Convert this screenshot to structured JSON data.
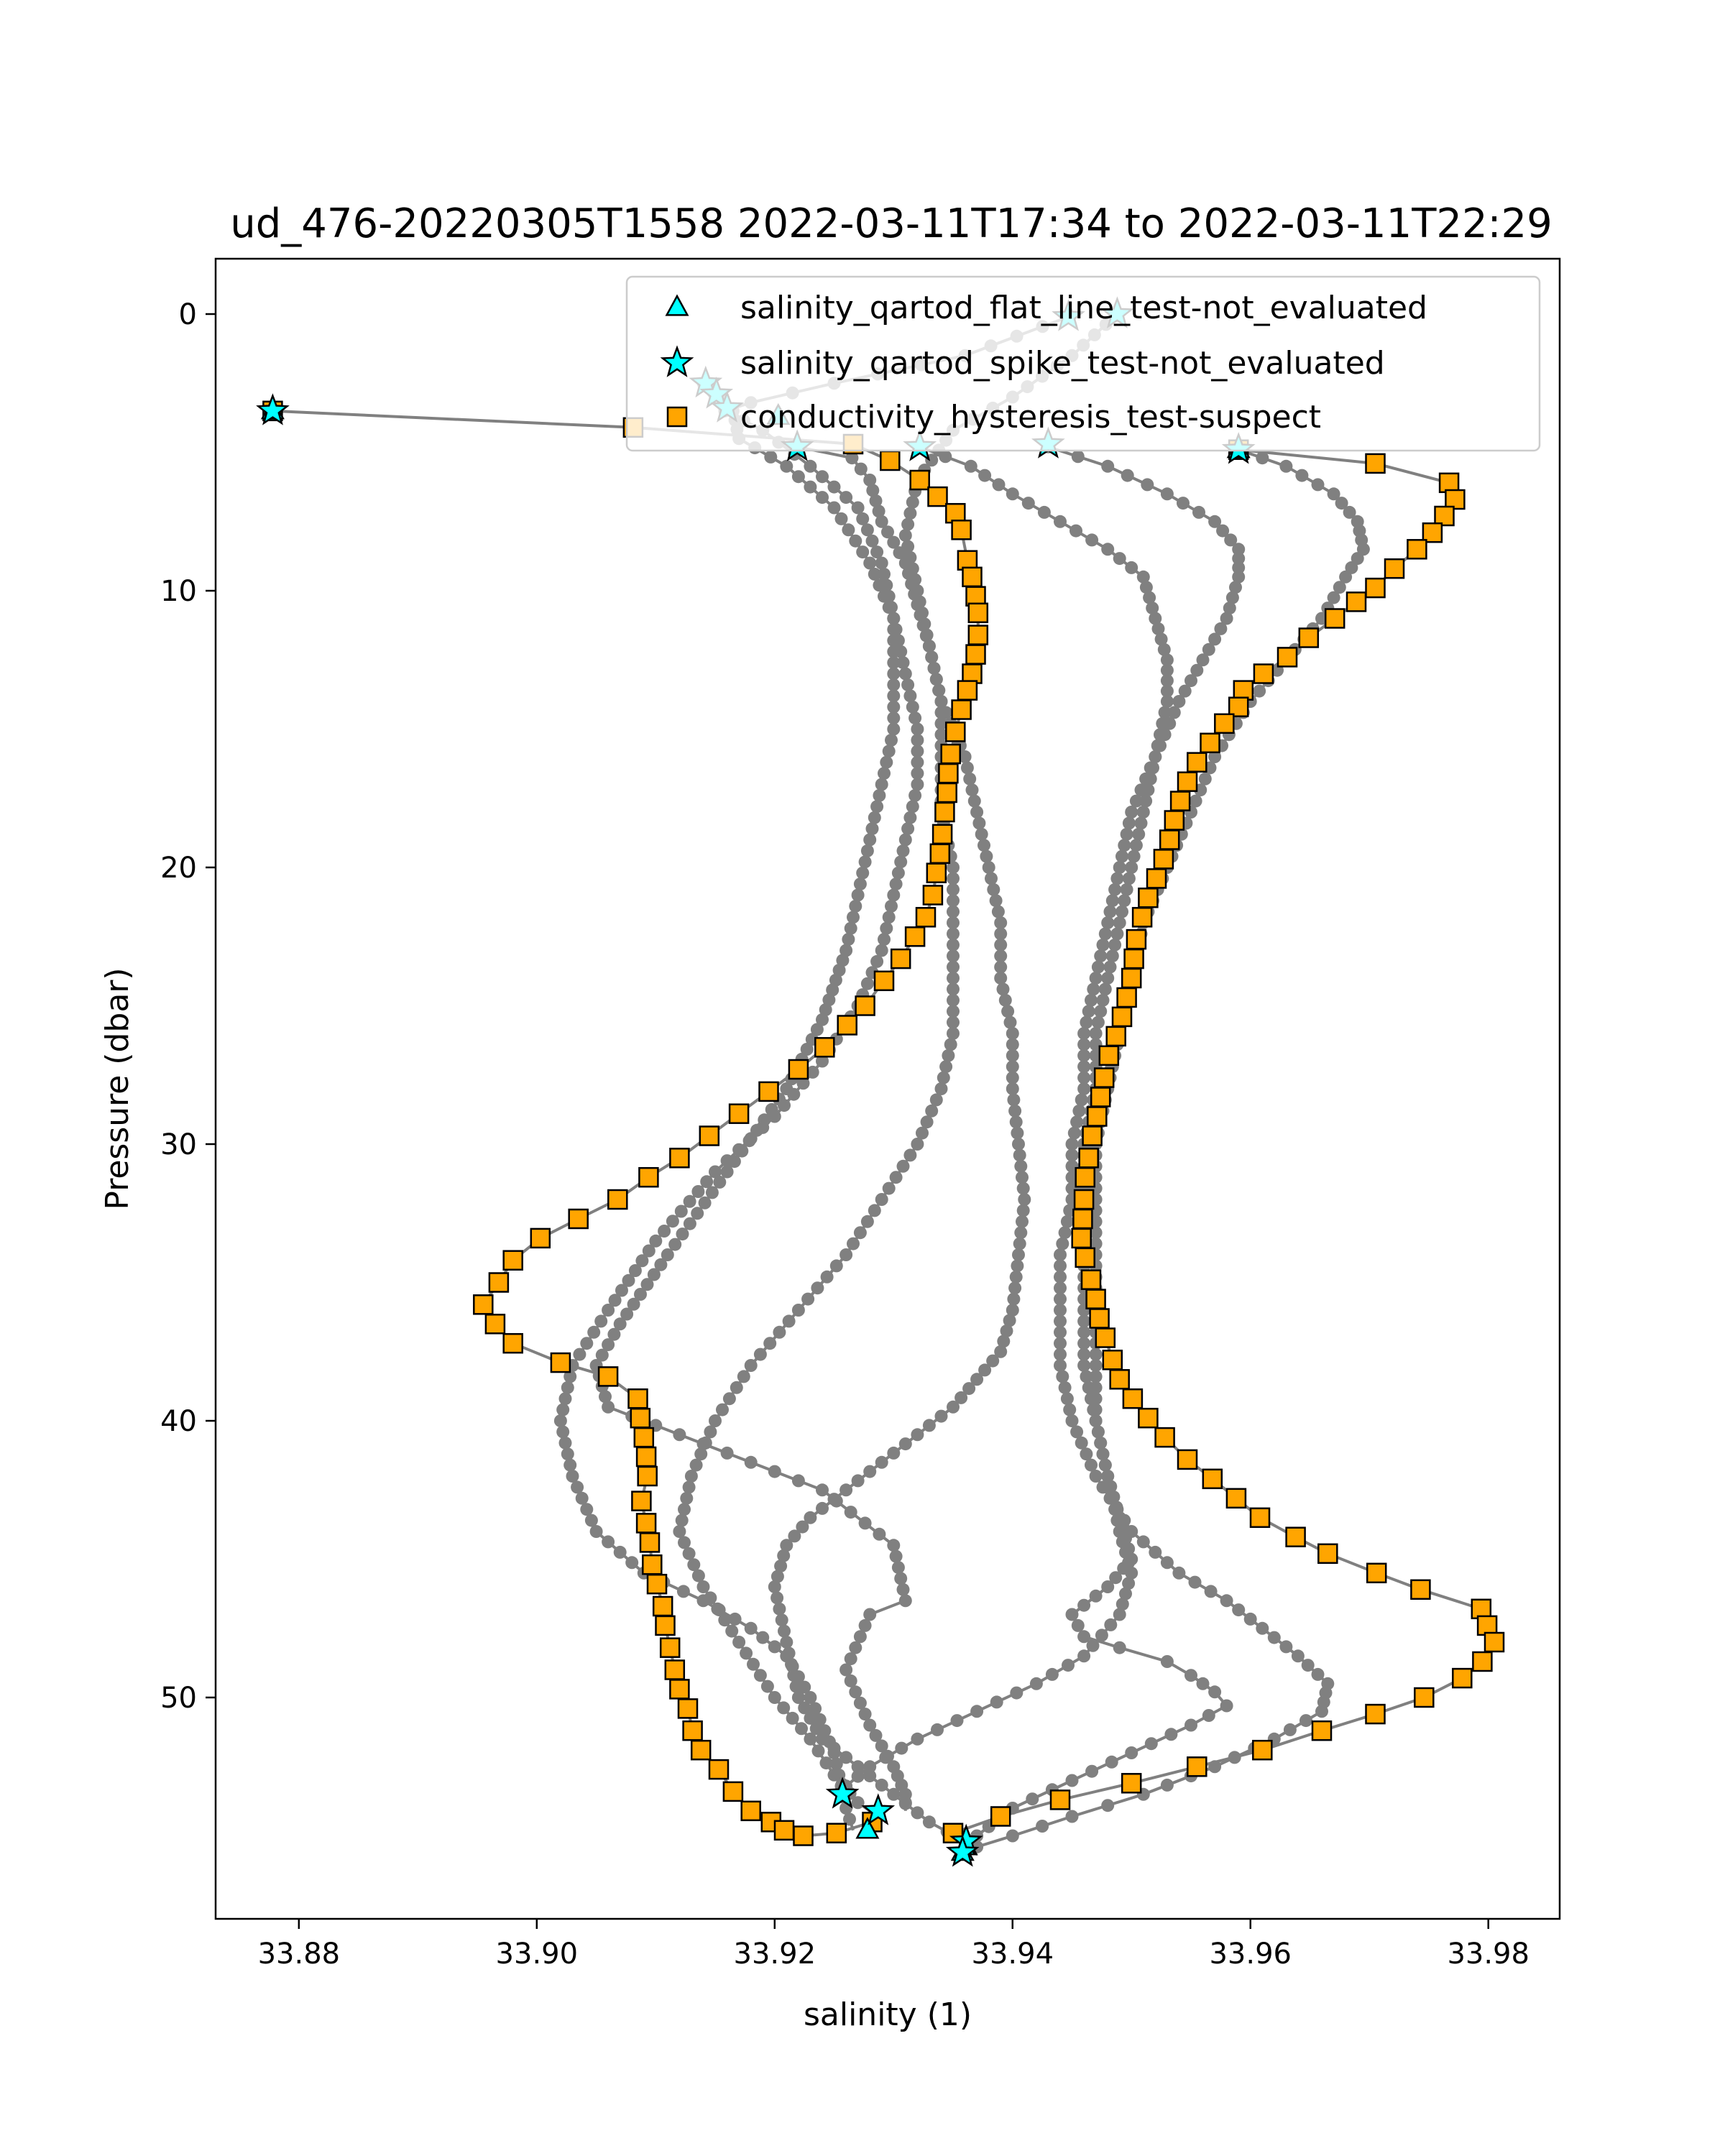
{
  "chart_data": {
    "type": "scatter",
    "title": "ud_476-20220305T1558 2022-03-11T17:34 to 2022-03-11T22:29",
    "xlabel": "salinity (1)",
    "ylabel": "Pressure (dbar)",
    "xlim": [
      33.873,
      33.986
    ],
    "ylim": [
      58,
      -2
    ],
    "y_inverted": true,
    "x_ticks": [
      "33.88",
      "33.90",
      "33.92",
      "33.94",
      "33.96",
      "33.98"
    ],
    "y_ticks": [
      "0",
      "10",
      "20",
      "30",
      "40",
      "50"
    ],
    "grid": false,
    "legend_position": "top-right",
    "colors": {
      "profile_line": "#808080",
      "flat_line_marker": "#00ffff",
      "spike_marker": "#00ffff",
      "hysteresis_marker": "#ffa500"
    },
    "profiles": [
      {
        "x": [
          33.9219,
          33.9265,
          33.928,
          33.929,
          33.931,
          33.932,
          33.933,
          33.934,
          33.936,
          33.937,
          33.938,
          33.939,
          33.939,
          33.94,
          33.94,
          33.9405,
          33.941,
          33.9405,
          33.94,
          33.939,
          33.937,
          33.935,
          33.932,
          33.929,
          33.926,
          33.923,
          33.921,
          33.92,
          33.921,
          33.922,
          33.924,
          33.927,
          33.93,
          33.933,
          33.936,
          33.9365
        ],
        "y": [
          4.8,
          5.2,
          6.0,
          7.5,
          9.0,
          10.5,
          12.0,
          14.0,
          16.0,
          18.0,
          20.0,
          22.0,
          24.0,
          26.0,
          28.0,
          30.0,
          32.0,
          34.0,
          36.0,
          37.5,
          38.5,
          39.5,
          40.5,
          41.5,
          42.5,
          43.5,
          44.5,
          46.0,
          48.0,
          50.0,
          51.5,
          52.5,
          53.5,
          54.5,
          55.2,
          55.6
        ]
      },
      {
        "x": [
          33.9322,
          33.9365,
          33.94,
          33.944,
          33.948,
          33.951,
          33.952,
          33.953,
          33.953,
          33.952,
          33.951,
          33.95,
          33.949,
          33.948,
          33.947,
          33.947,
          33.946,
          33.946,
          33.946,
          33.946,
          33.946,
          33.947,
          33.948,
          33.949,
          33.95,
          33.949,
          33.946,
          33.942,
          33.937,
          33.932,
          33.928,
          33.926,
          33.9257
        ],
        "y": [
          4.8,
          5.5,
          6.5,
          7.5,
          8.5,
          9.5,
          11.0,
          12.5,
          14.0,
          16.0,
          18.0,
          20.0,
          22.0,
          24.0,
          26.0,
          28.0,
          30.0,
          32.0,
          34.0,
          36.0,
          38.0,
          40.0,
          42.0,
          44.0,
          45.5,
          47.0,
          48.5,
          49.5,
          50.5,
          51.5,
          52.5,
          53.2,
          53.6
        ]
      },
      {
        "x": [
          33.943,
          33.948,
          33.953,
          33.957,
          33.959,
          33.959,
          33.958,
          33.956,
          33.954,
          33.952,
          33.95,
          33.949,
          33.948,
          33.947,
          33.946,
          33.946,
          33.945,
          33.945,
          33.944,
          33.944,
          33.944,
          33.945,
          33.947,
          33.95,
          33.954,
          33.958,
          33.961,
          33.964,
          33.9665,
          33.966,
          33.962,
          33.957,
          33.951,
          33.945,
          33.94,
          33.937,
          33.9358
        ],
        "y": [
          4.8,
          5.5,
          6.5,
          7.5,
          8.5,
          9.5,
          11.0,
          12.5,
          14.0,
          16.0,
          18.0,
          20.0,
          22.0,
          24.0,
          26.0,
          28.0,
          30.0,
          32.0,
          34.0,
          36.0,
          38.0,
          40.0,
          42.0,
          44.0,
          45.5,
          46.5,
          47.5,
          48.5,
          49.5,
          50.5,
          51.5,
          52.5,
          53.5,
          54.3,
          55.0,
          55.4,
          55.6
        ]
      },
      {
        "x": [
          33.959,
          33.963,
          33.967,
          33.969,
          33.9695,
          33.968,
          33.966,
          33.963,
          33.96,
          33.957,
          33.955,
          33.953,
          33.951,
          33.95,
          33.949,
          33.948,
          33.947,
          33.947,
          33.947,
          33.947,
          33.947,
          33.947,
          33.948,
          33.949,
          33.95,
          33.948,
          33.945,
          33.946,
          33.949,
          33.953,
          33.955,
          33.957,
          33.958,
          33.955,
          33.95,
          33.945,
          33.94,
          33.937,
          33.9358
        ],
        "y": [
          4.9,
          5.5,
          6.5,
          7.5,
          8.5,
          9.5,
          11.0,
          12.5,
          14.0,
          16.0,
          18.0,
          20.0,
          22.0,
          24.0,
          26.0,
          28.0,
          30.0,
          32.0,
          34.0,
          36.0,
          38.0,
          40.0,
          42.0,
          43.5,
          45.0,
          46.0,
          47.0,
          47.8,
          48.2,
          48.7,
          49.2,
          49.8,
          50.3,
          51.0,
          52.0,
          53.0,
          54.0,
          55.0,
          55.6
        ]
      },
      {
        "x": [
          33.9488,
          33.945,
          33.94,
          33.935,
          33.932,
          33.931,
          33.932,
          33.933,
          33.934,
          33.934,
          33.934,
          33.935,
          33.935,
          33.935,
          33.935,
          33.934,
          33.932,
          33.929,
          33.926,
          33.922,
          33.918,
          33.915,
          33.913,
          33.912,
          33.914,
          33.917,
          33.92,
          33.923,
          33.925,
          33.927,
          33.928
        ],
        "y": [
          0.0,
          1.5,
          3.0,
          4.2,
          6.0,
          8.0,
          10.0,
          12.0,
          14.0,
          16.0,
          18.0,
          20.0,
          22.0,
          24.0,
          26.0,
          28.0,
          30.0,
          32.0,
          34.0,
          36.0,
          38.0,
          40.0,
          42.0,
          44.0,
          46.0,
          48.0,
          50.0,
          51.5,
          52.8,
          53.8,
          54.1
        ]
      },
      {
        "x": [
          33.9447,
          33.936,
          33.925,
          33.918,
          33.9158,
          33.919,
          33.923,
          33.927,
          33.929,
          33.93,
          33.93,
          33.93,
          33.929,
          33.928,
          33.927,
          33.926,
          33.924,
          33.921,
          33.916,
          33.911,
          33.907,
          33.905,
          33.906,
          33.912,
          33.918,
          33.924,
          33.93,
          33.931,
          33.928,
          33.926,
          33.928,
          33.93,
          33.931,
          33.931
        ],
        "y": [
          0.1,
          1.5,
          2.5,
          3.2,
          3.5,
          4.2,
          5.5,
          7.0,
          9.0,
          11.0,
          13.0,
          15.0,
          17.0,
          19.0,
          21.0,
          23.0,
          25.5,
          28.0,
          31.0,
          34.0,
          36.5,
          38.0,
          39.5,
          40.5,
          41.5,
          42.5,
          44.5,
          46.5,
          47.0,
          49.0,
          51.0,
          52.5,
          53.5,
          54.1
        ]
      },
      {
        "x": [
          33.914,
          33.9165,
          33.917,
          33.921,
          33.925,
          33.928,
          33.93,
          33.931,
          33.932,
          33.932,
          33.931,
          33.93,
          33.929,
          33.927,
          33.924,
          33.92,
          33.915,
          33.91,
          33.906,
          33.903,
          33.902,
          33.903,
          33.905,
          33.909,
          33.914,
          33.918,
          33.921,
          33.923,
          33.925,
          33.926,
          33.9266
        ],
        "y": [
          2.5,
          3.5,
          4.5,
          5.5,
          7.0,
          9.0,
          11.0,
          13.0,
          15.0,
          17.0,
          19.0,
          21.0,
          23.0,
          25.0,
          27.0,
          29.0,
          31.0,
          33.5,
          36.0,
          38.0,
          40.0,
          42.0,
          44.0,
          45.5,
          46.5,
          47.5,
          48.5,
          50.0,
          52.0,
          54.0,
          54.8
        ]
      }
    ],
    "series": [
      {
        "name": "salinity_qartod_flat_line_test-not_evaluated",
        "marker": "triangle",
        "x": [
          33.8778,
          33.9203,
          33.959,
          33.9278,
          33.9361,
          33.9358
        ],
        "y": [
          3.5,
          3.7,
          4.9,
          54.8,
          55.4,
          55.6
        ]
      },
      {
        "name": "salinity_qartod_spike_test-not_evaluated",
        "marker": "star",
        "x": [
          33.8778,
          33.9447,
          33.9488,
          33.9142,
          33.9151,
          33.916,
          33.9219,
          33.9322,
          33.943,
          33.959,
          33.9257,
          33.9287,
          33.9361,
          33.9358
        ],
        "y": [
          3.5,
          0.1,
          0.0,
          2.5,
          2.9,
          3.4,
          4.8,
          4.8,
          4.7,
          4.9,
          53.5,
          54.1,
          55.2,
          55.6
        ]
      },
      {
        "name": "conductivity_hysteresis_test-suspect",
        "marker": "square",
        "profiles": [
          {
            "x": [
              33.8778,
              33.9081,
              33.9266,
              33.9297,
              33.9322,
              33.9337,
              33.9352,
              33.9357,
              33.9362,
              33.9366,
              33.9369,
              33.9371,
              33.9371,
              33.9369,
              33.9366,
              33.9362,
              33.9357,
              33.9352,
              33.9348,
              33.9346,
              33.9345,
              33.9343,
              33.9341,
              33.9339,
              33.9336,
              33.9333,
              33.9327,
              33.9318,
              33.9306,
              33.9292,
              33.9276,
              33.9261,
              33.9242,
              33.922,
              33.9195,
              33.917,
              33.9145,
              33.912,
              33.9094,
              33.9068,
              33.9035,
              33.9003,
              33.898,
              33.8968,
              33.8955,
              33.8965,
              33.898,
              33.902,
              33.906,
              33.9085,
              33.9087,
              33.909,
              33.9092,
              33.9093,
              33.9088,
              33.9092,
              33.9095,
              33.9097,
              33.9101,
              33.9106,
              33.9108,
              33.9112,
              33.9116,
              33.912,
              33.9127,
              33.9131,
              33.9138,
              33.9153,
              33.9165,
              33.918,
              33.9197,
              33.9208,
              33.9224,
              33.9252,
              33.9282
            ],
            "y": [
              3.5,
              4.1,
              4.7,
              5.3,
              6.0,
              6.6,
              7.2,
              7.8,
              8.9,
              9.5,
              10.2,
              10.8,
              11.6,
              12.3,
              13.0,
              13.6,
              14.3,
              15.1,
              15.9,
              16.6,
              17.3,
              18.0,
              18.8,
              19.5,
              20.2,
              21.0,
              21.8,
              22.5,
              23.3,
              24.1,
              25.0,
              25.7,
              26.5,
              27.3,
              28.1,
              28.9,
              29.7,
              30.5,
              31.2,
              32.0,
              32.7,
              33.4,
              34.2,
              35.0,
              35.8,
              36.5,
              37.2,
              37.9,
              38.4,
              39.2,
              39.9,
              40.6,
              41.3,
              42.0,
              42.9,
              43.7,
              44.4,
              45.2,
              45.9,
              46.7,
              47.4,
              48.2,
              49.0,
              49.7,
              50.4,
              51.2,
              51.9,
              52.6,
              53.4,
              54.1,
              54.5,
              54.8,
              55.0,
              54.9,
              54.5
            ]
          },
          {
            "x": [
              33.959,
              33.9705,
              33.9767,
              33.9772,
              33.9763,
              33.9753,
              33.974,
              33.9721,
              33.9705,
              33.9689,
              33.9671,
              33.9649,
              33.9631,
              33.9611,
              33.9594,
              33.959,
              33.9578,
              33.9566,
              33.9555,
              33.9547,
              33.9541,
              33.9536,
              33.9532,
              33.9527,
              33.9521,
              33.9514,
              33.9509,
              33.9504,
              33.9502,
              33.95,
              33.9496,
              33.9492,
              33.9487,
              33.9481,
              33.9477,
              33.9474,
              33.9471,
              33.9467,
              33.9464,
              33.9461,
              33.946,
              33.9459,
              33.9458,
              33.9461,
              33.9466,
              33.947,
              33.9473,
              33.9478,
              33.9484,
              33.949,
              33.9501,
              33.9514,
              33.9528,
              33.9547,
              33.9568,
              33.9588,
              33.9608,
              33.9638,
              33.9665,
              33.9706,
              33.9743,
              33.9794,
              33.9799,
              33.9805,
              33.9795,
              33.9778,
              33.9746,
              33.9705,
              33.966,
              33.961,
              33.9555,
              33.95,
              33.944,
              33.939,
              33.935
            ],
            "y": [
              4.9,
              5.4,
              6.1,
              6.7,
              7.3,
              7.9,
              8.5,
              9.2,
              9.9,
              10.4,
              11.0,
              11.7,
              12.4,
              13.0,
              13.6,
              14.2,
              14.8,
              15.5,
              16.2,
              16.9,
              17.6,
              18.3,
              19.0,
              19.7,
              20.4,
              21.1,
              21.8,
              22.6,
              23.3,
              24.0,
              24.7,
              25.4,
              26.1,
              26.8,
              27.6,
              28.3,
              29.0,
              29.7,
              30.5,
              31.2,
              32.0,
              32.7,
              33.4,
              34.1,
              34.9,
              35.6,
              36.3,
              37.0,
              37.8,
              38.5,
              39.2,
              39.9,
              40.6,
              41.4,
              42.1,
              42.8,
              43.5,
              44.2,
              44.8,
              45.5,
              46.1,
              46.8,
              47.4,
              48.0,
              48.7,
              49.3,
              50.0,
              50.6,
              51.2,
              51.9,
              52.5,
              53.1,
              53.7,
              54.3,
              54.9
            ]
          }
        ]
      }
    ]
  }
}
